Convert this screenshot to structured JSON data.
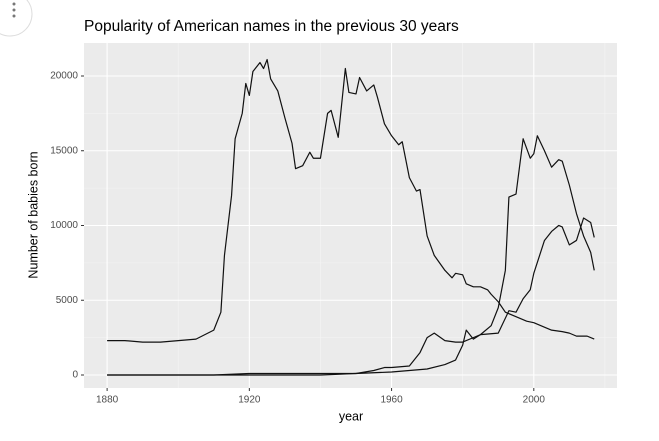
{
  "chart_data": {
    "type": "line",
    "title": "Popularity of American names in the previous 30 years",
    "x_label": "year",
    "y_label": "Number of babies born",
    "xlim": [
      1873.5,
      2023.4
    ],
    "ylim": [
      -870,
      22207
    ],
    "xticks": [
      1880,
      1920,
      1960,
      2000
    ],
    "yticks": [
      0,
      5000,
      10000,
      15000,
      20000
    ],
    "grid": true,
    "series": [
      {
        "color": "#111111",
        "x": [
          1880,
          1885,
          1890,
          1895,
          1900,
          1905,
          1910,
          1912,
          1913,
          1915,
          1916,
          1918,
          1919,
          1920,
          1921,
          1923,
          1924,
          1925,
          1926,
          1928,
          1930,
          1932,
          1933,
          1935,
          1937,
          1938,
          1940,
          1942,
          1943,
          1945,
          1947,
          1948,
          1950,
          1951,
          1953,
          1955,
          1956,
          1958,
          1960,
          1962,
          1963,
          1965,
          1967,
          1968,
          1970,
          1972,
          1975,
          1977,
          1978,
          1980,
          1981,
          1983,
          1985,
          1987,
          1988,
          1990,
          1992,
          1995,
          1998,
          2000,
          2003,
          2005,
          2008,
          2010,
          2012,
          2015,
          2017
        ],
        "values": [
          2300,
          2300,
          2200,
          2200,
          2300,
          2400,
          3000,
          4200,
          8000,
          12000,
          15800,
          17500,
          19500,
          18700,
          20300,
          20900,
          20500,
          21100,
          19800,
          19000,
          17200,
          15500,
          13800,
          14000,
          14900,
          14500,
          14500,
          17500,
          17700,
          15900,
          20500,
          18900,
          18800,
          19900,
          19000,
          19400,
          18600,
          16800,
          16000,
          15400,
          15600,
          13200,
          12300,
          12400,
          9300,
          8000,
          7000,
          6500,
          6800,
          6700,
          6100,
          5900,
          5900,
          5700,
          5400,
          4900,
          4200,
          3900,
          3600,
          3500,
          3200,
          3000,
          2900,
          2800,
          2600,
          2600,
          2400
        ]
      },
      {
        "color": "#111111",
        "x": [
          1880,
          1910,
          1920,
          1950,
          1955,
          1958,
          1960,
          1965,
          1968,
          1970,
          1972,
          1975,
          1978,
          1980,
          1983,
          1985,
          1988,
          1990,
          1992,
          1993,
          1995,
          1997,
          1999,
          2000,
          2001,
          2003,
          2005,
          2007,
          2008,
          2010,
          2012,
          2014,
          2016,
          2017
        ],
        "values": [
          0,
          0,
          100,
          100,
          300,
          500,
          500,
          600,
          1500,
          2500,
          2800,
          2300,
          2200,
          2200,
          2500,
          2700,
          3300,
          4500,
          7000,
          11900,
          12100,
          15800,
          14500,
          14800,
          16000,
          15000,
          13900,
          14400,
          14300,
          12700,
          10800,
          9300,
          8200,
          7000
        ]
      },
      {
        "color": "#111111",
        "x": [
          1880,
          1940,
          1960,
          1970,
          1975,
          1978,
          1980,
          1981,
          1983,
          1985,
          1990,
          1993,
          1995,
          1997,
          1999,
          2000,
          2003,
          2005,
          2007,
          2008,
          2010,
          2012,
          2014,
          2016,
          2017
        ],
        "values": [
          0,
          0,
          200,
          400,
          700,
          1000,
          2000,
          3000,
          2400,
          2700,
          2800,
          4300,
          4200,
          5100,
          5700,
          6800,
          9000,
          9600,
          10000,
          9900,
          8700,
          9000,
          10500,
          10200,
          9200
        ]
      }
    ]
  }
}
